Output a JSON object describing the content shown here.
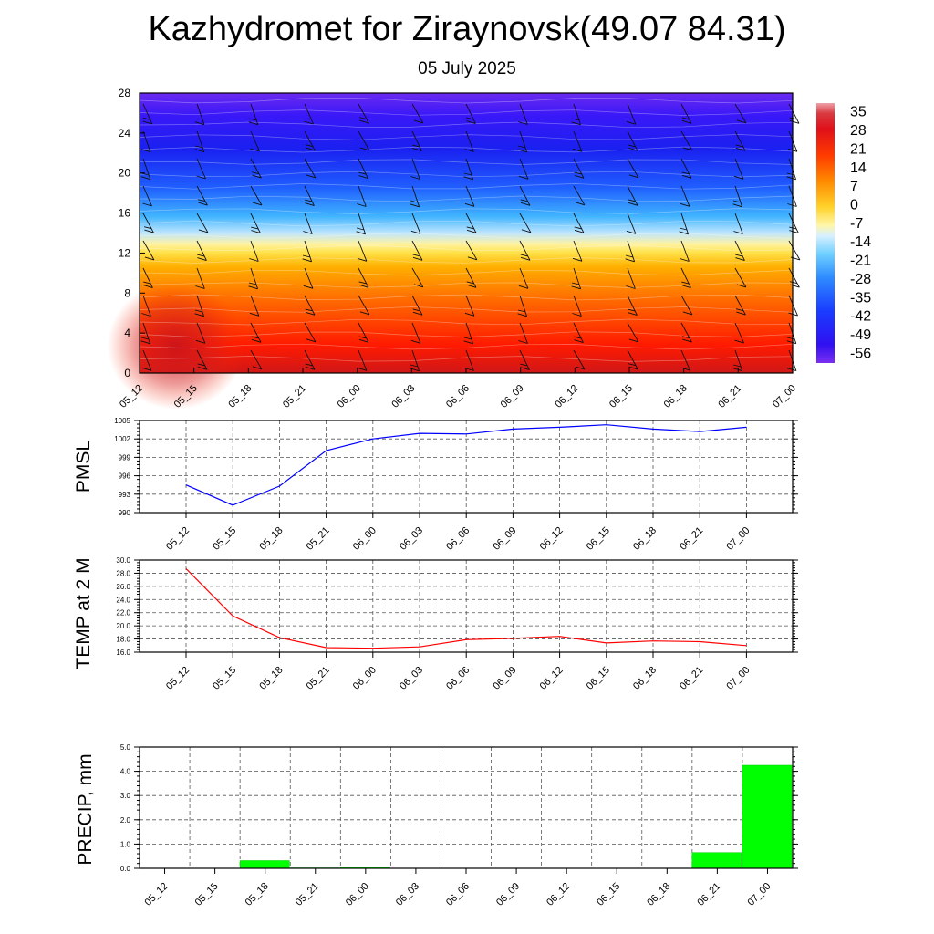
{
  "title": "Kazhydromet for Ziraynovsk(49.07 84.31)",
  "subtitle": "05 July 2025",
  "time_labels": [
    "05_12",
    "05_15",
    "05_18",
    "05_21",
    "06_00",
    "06_03",
    "06_06",
    "06_09",
    "06_12",
    "06_15",
    "06_18",
    "06_21",
    "07_00"
  ],
  "chart_data": [
    {
      "type": "heatmap",
      "description_label": "",
      "x": [
        "05_12",
        "05_15",
        "05_18",
        "05_21",
        "06_00",
        "06_03",
        "06_06",
        "06_09",
        "06_12",
        "06_15",
        "06_18",
        "06_21",
        "07_00"
      ],
      "y_ticks": [
        0,
        4,
        8,
        12,
        16,
        20,
        24,
        28
      ],
      "ylim": [
        0,
        28
      ],
      "colorbar_ticks": [
        35,
        28,
        21,
        14,
        7,
        0,
        -7,
        -14,
        -21,
        -28,
        -35,
        -42,
        -49,
        -56
      ],
      "colorbar_range": [
        -60,
        38
      ],
      "grid": false
    },
    {
      "type": "line",
      "ylabel": "PMSL",
      "x": [
        "05_12",
        "05_15",
        "05_18",
        "05_21",
        "06_00",
        "06_03",
        "06_06",
        "06_09",
        "06_12",
        "06_15",
        "06_18",
        "06_21",
        "07_00"
      ],
      "y_ticks": [
        990,
        993,
        996,
        999,
        1002,
        1005
      ],
      "ylim": [
        990,
        1005
      ],
      "series": [
        {
          "values": [
            994.5,
            991.2,
            994.3,
            1000.1,
            1002.0,
            1002.9,
            1002.8,
            1003.6,
            1003.9,
            1004.3,
            1003.6,
            1003.2,
            1003.9
          ]
        }
      ],
      "color": "#0000ff",
      "grid": true
    },
    {
      "type": "line",
      "ylabel": "TEMP at 2 M",
      "x": [
        "05_12",
        "05_15",
        "05_18",
        "05_21",
        "06_00",
        "06_03",
        "06_06",
        "06_09",
        "06_12",
        "06_15",
        "06_18",
        "06_21",
        "07_00"
      ],
      "y_ticks": [
        "16.0",
        "18.0",
        "20.0",
        "22.0",
        "24.0",
        "26.0",
        "28.0",
        "30.0"
      ],
      "ylim": [
        16,
        30
      ],
      "series": [
        {
          "values": [
            28.7,
            21.5,
            18.2,
            16.7,
            16.6,
            16.8,
            17.9,
            18.1,
            18.4,
            17.4,
            17.7,
            17.6,
            17.0
          ]
        }
      ],
      "color": "#ff0000",
      "grid": true
    },
    {
      "type": "bar",
      "ylabel": "PRECIP, mm",
      "categories": [
        "05_12",
        "05_15",
        "05_18",
        "05_21",
        "06_00",
        "06_03",
        "06_06",
        "06_09",
        "06_12",
        "06_15",
        "06_18",
        "06_21",
        "07_00"
      ],
      "y_ticks": [
        "0.0",
        "1.0",
        "2.0",
        "3.0",
        "4.0",
        "5.0"
      ],
      "ylim": [
        0,
        5
      ],
      "values": [
        0,
        0,
        0.32,
        0.02,
        0.05,
        0,
        0,
        0,
        0,
        0,
        0,
        0.65,
        4.25
      ],
      "color": "#00ff00",
      "grid": true
    }
  ]
}
